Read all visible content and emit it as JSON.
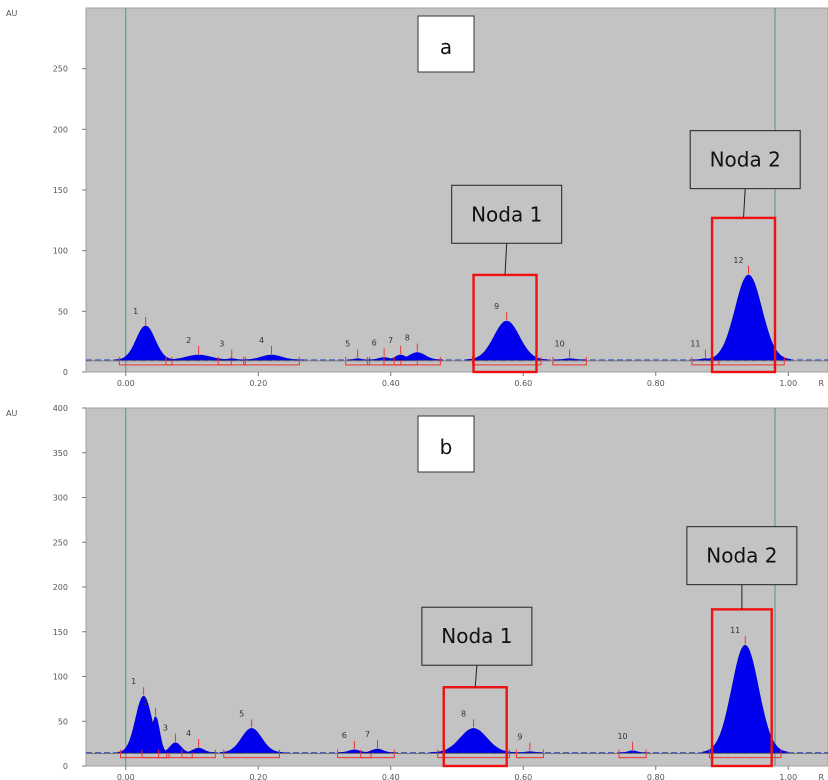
{
  "chart_data": [
    {
      "type": "area",
      "panel_label": "a",
      "ylabel": "AU",
      "xlabel": "R",
      "xlim": [
        -0.06,
        1.06
      ],
      "ylim": [
        0,
        300
      ],
      "x_ticks": [
        "0.00",
        "0.20",
        "0.40",
        "0.60",
        "0.80",
        "1.00"
      ],
      "x_tick_values": [
        0.0,
        0.2,
        0.4,
        0.6,
        0.8,
        1.0
      ],
      "y_ticks": [
        "0",
        "50",
        "100",
        "150",
        "200",
        "250"
      ],
      "y_tick_values": [
        0,
        50,
        100,
        150,
        200,
        250
      ],
      "baseline": 10,
      "front_lines": [
        0.0,
        0.98
      ],
      "peaks": [
        {
          "label": "1",
          "x": 0.03,
          "height": 38,
          "width": 0.014
        },
        {
          "label": "2",
          "x": 0.11,
          "height": 14,
          "width": 0.018
        },
        {
          "label": "3",
          "x": 0.16,
          "height": 11,
          "width": 0.006
        },
        {
          "label": "4",
          "x": 0.22,
          "height": 14,
          "width": 0.015
        },
        {
          "label": "5",
          "x": 0.35,
          "height": 11,
          "width": 0.005
        },
        {
          "label": "6",
          "x": 0.39,
          "height": 12,
          "width": 0.008
        },
        {
          "label": "7",
          "x": 0.415,
          "height": 14,
          "width": 0.008
        },
        {
          "label": "8",
          "x": 0.44,
          "height": 16,
          "width": 0.012
        },
        {
          "label": "9",
          "x": 0.575,
          "height": 42,
          "width": 0.019
        },
        {
          "label": "10",
          "x": 0.67,
          "height": 11,
          "width": 0.008
        },
        {
          "label": "11",
          "x": 0.875,
          "height": 11,
          "width": 0.006
        },
        {
          "label": "12",
          "x": 0.94,
          "height": 80,
          "width": 0.02
        }
      ],
      "annotations": [
        {
          "text": "Noda 1",
          "peak": "9",
          "x_range": [
            0.525,
            0.62
          ],
          "y_range": [
            0,
            80
          ],
          "label_box": {
            "x": 0.575,
            "y": 130
          }
        },
        {
          "text": "Noda 2",
          "peak": "12",
          "x_range": [
            0.885,
            0.98
          ],
          "y_range": [
            0,
            127
          ],
          "label_box": {
            "x": 0.935,
            "y": 175
          }
        }
      ]
    },
    {
      "type": "area",
      "panel_label": "b",
      "ylabel": "AU",
      "xlabel": "R",
      "xlim": [
        -0.06,
        1.06
      ],
      "ylim": [
        0,
        400
      ],
      "x_ticks": [
        "0.00",
        "0.20",
        "0.40",
        "0.60",
        "0.80",
        "1.00"
      ],
      "x_tick_values": [
        0.0,
        0.2,
        0.4,
        0.6,
        0.8,
        1.0
      ],
      "y_ticks": [
        "0",
        "50",
        "100",
        "150",
        "200",
        "250",
        "300",
        "350",
        "400"
      ],
      "y_tick_values": [
        0,
        50,
        100,
        150,
        200,
        250,
        300,
        350,
        400
      ],
      "baseline": 15,
      "front_lines": [
        0.0,
        0.98
      ],
      "peaks": [
        {
          "label": "1",
          "x": 0.027,
          "height": 78,
          "width": 0.012
        },
        {
          "label": "2",
          "x": 0.045,
          "height": 55,
          "width": 0.006
        },
        {
          "label": "3",
          "x": 0.075,
          "height": 26,
          "width": 0.008
        },
        {
          "label": "4",
          "x": 0.11,
          "height": 20,
          "width": 0.008
        },
        {
          "label": "5",
          "x": 0.19,
          "height": 42,
          "width": 0.015
        },
        {
          "label": "6",
          "x": 0.345,
          "height": 18,
          "width": 0.008
        },
        {
          "label": "7",
          "x": 0.38,
          "height": 19,
          "width": 0.008
        },
        {
          "label": "8",
          "x": 0.525,
          "height": 42,
          "width": 0.02
        },
        {
          "label": "9",
          "x": 0.61,
          "height": 16,
          "width": 0.006
        },
        {
          "label": "10",
          "x": 0.765,
          "height": 17,
          "width": 0.006
        },
        {
          "label": "11",
          "x": 0.935,
          "height": 135,
          "width": 0.02
        }
      ],
      "annotations": [
        {
          "text": "Noda 1",
          "peak": "8",
          "x_range": [
            0.48,
            0.575
          ],
          "y_range": [
            0,
            88
          ],
          "label_box": {
            "x": 0.53,
            "y": 145
          }
        },
        {
          "text": "Noda 2",
          "peak": "11",
          "x_range": [
            0.885,
            0.975
          ],
          "y_range": [
            0,
            175
          ],
          "label_box": {
            "x": 0.93,
            "y": 235
          }
        }
      ]
    }
  ]
}
